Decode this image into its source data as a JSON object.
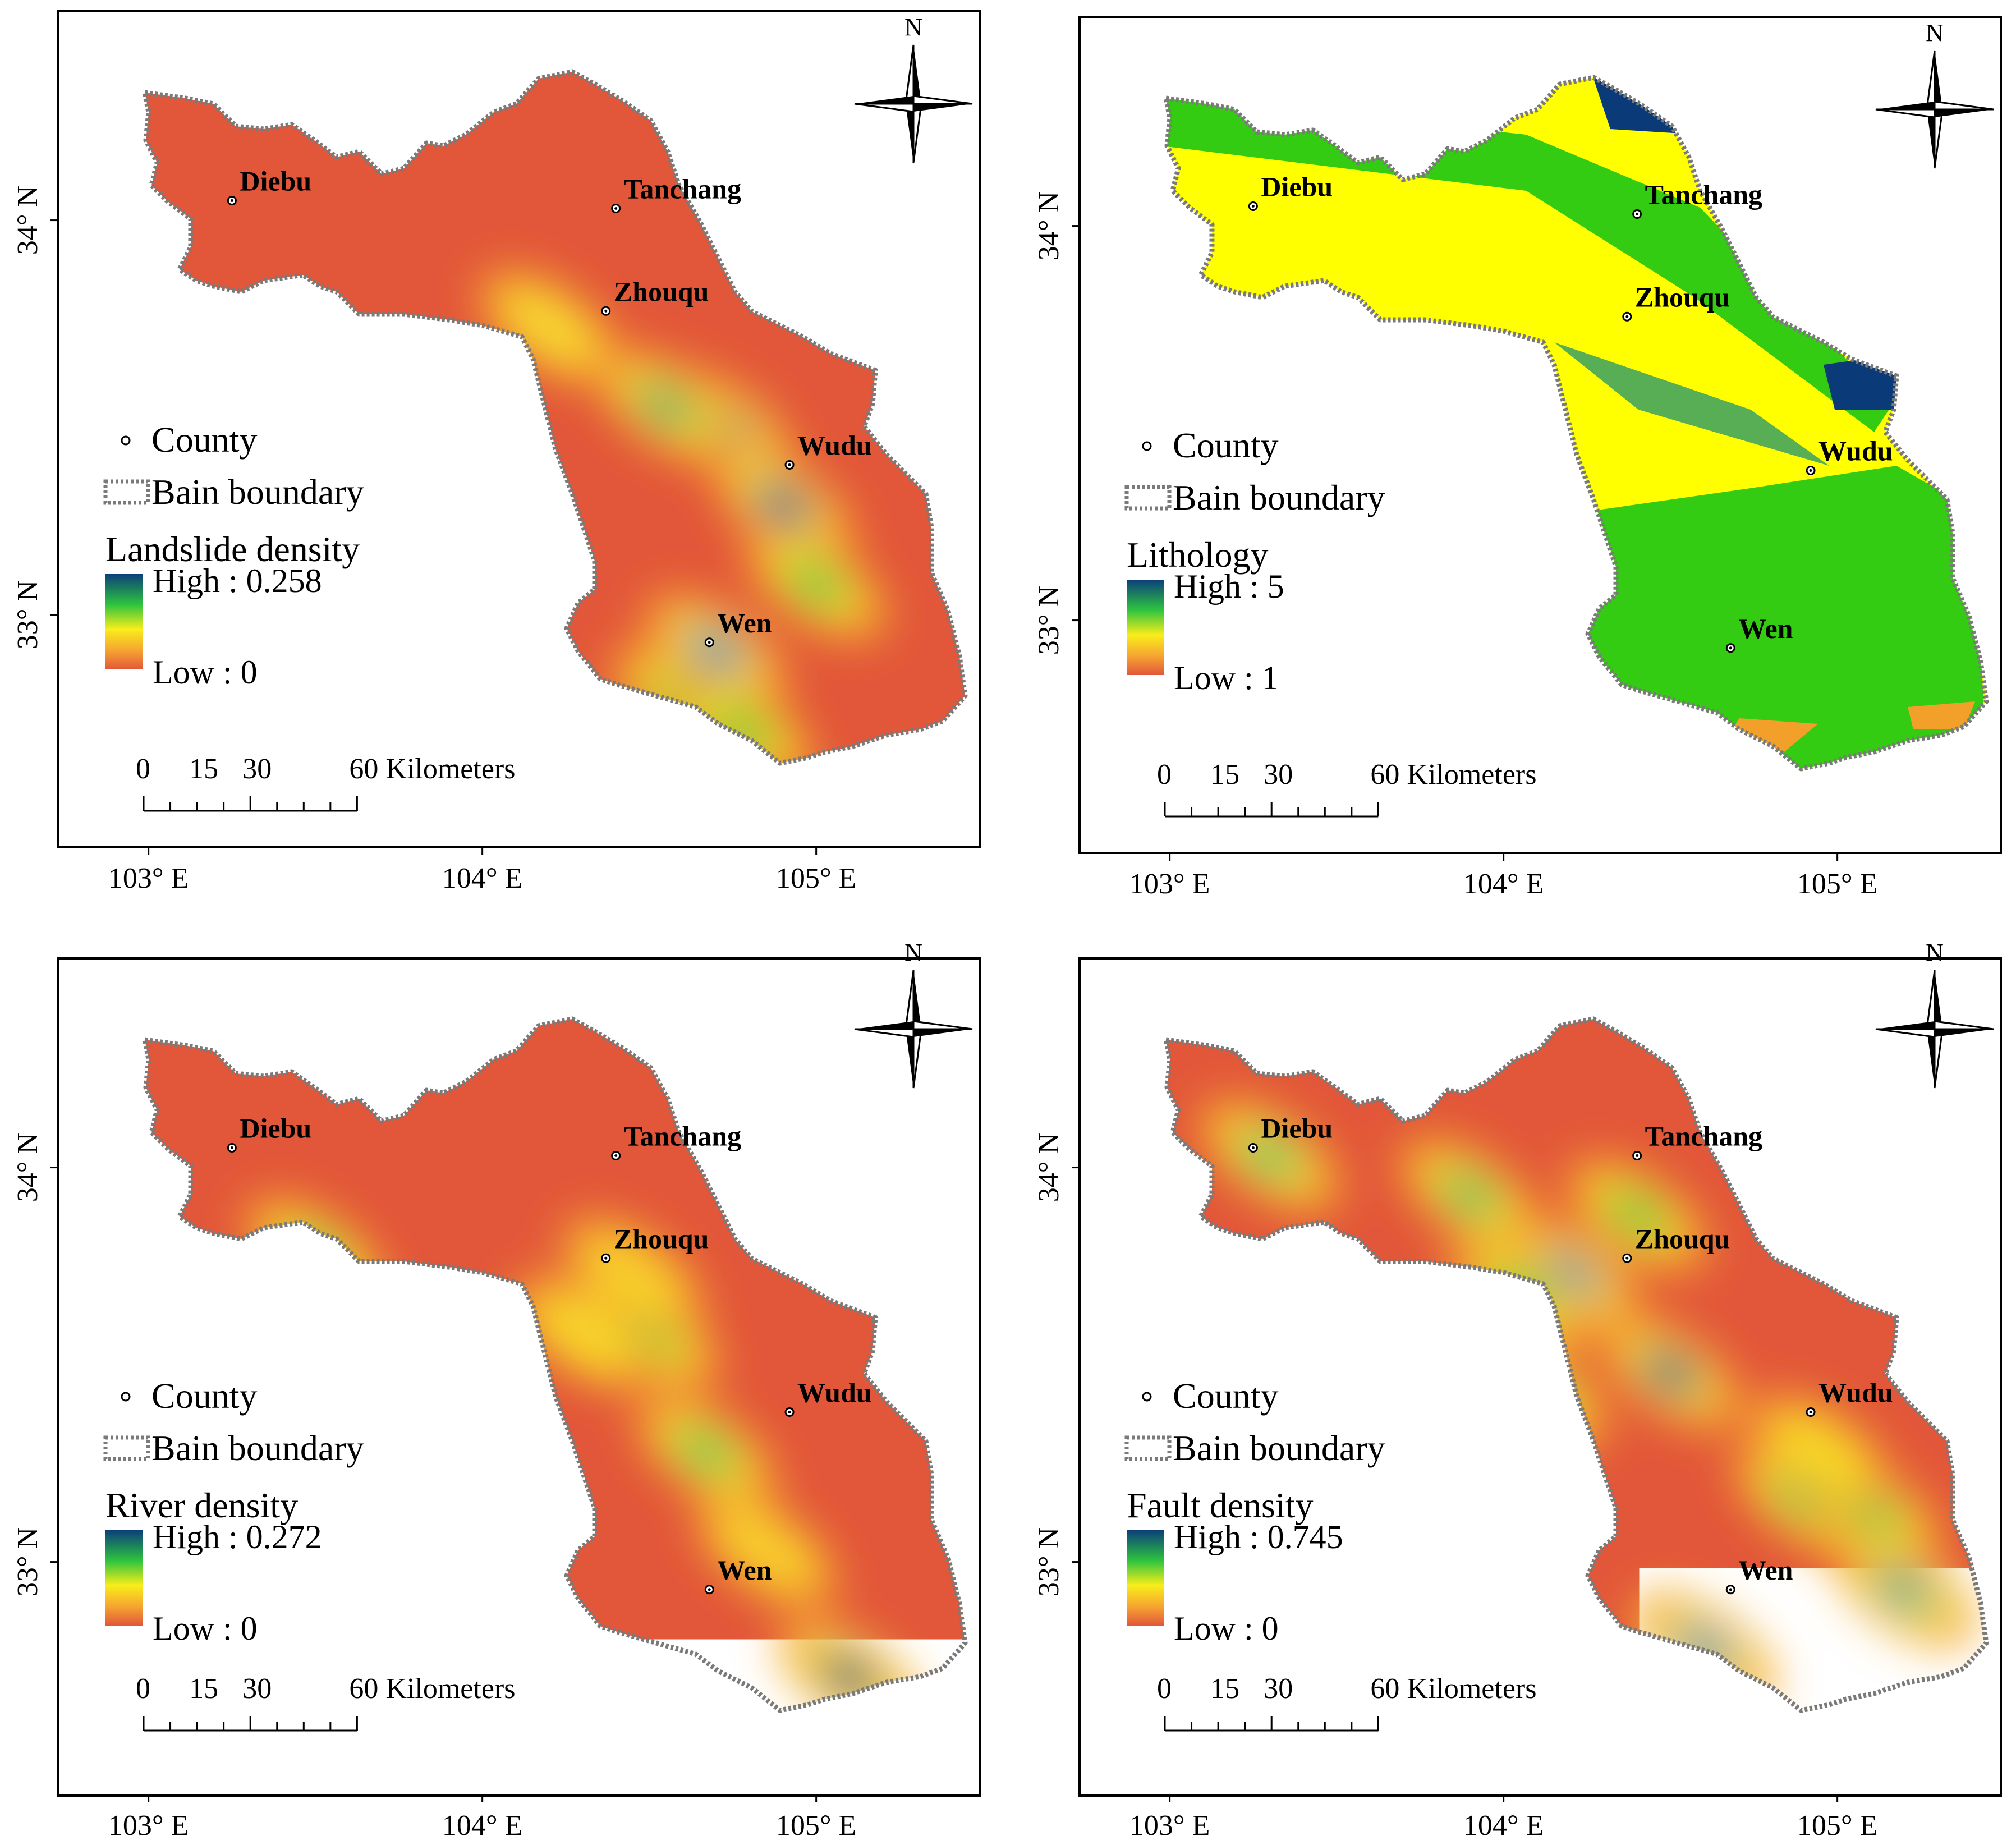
{
  "panels": [
    {
      "layer_title": "Landslide density",
      "high_label": "High : 0.258",
      "low_label": "Low : 0",
      "ramp": "density",
      "blobs": [
        {
          "x": 104.72,
          "y": 33.65,
          "c": "#1f5fa0"
        },
        {
          "x": 104.9,
          "y": 33.45,
          "c": "#1a4f95"
        },
        {
          "x": 104.55,
          "y": 33.7,
          "c": "#2ca36a"
        },
        {
          "x": 104.7,
          "y": 33.08,
          "c": "#2c8fb5"
        },
        {
          "x": 104.6,
          "y": 32.95,
          "c": "#1cb84d"
        },
        {
          "x": 104.2,
          "y": 33.9,
          "c": "#f6d33a"
        },
        {
          "x": 105.0,
          "y": 33.25,
          "c": "#32c34a"
        },
        {
          "x": 104.78,
          "y": 32.88,
          "c": "#35c23c"
        }
      ]
    },
    {
      "layer_title": "Lithology",
      "high_label": "High : 5",
      "low_label": "Low : 1",
      "ramp": "lithology",
      "blobs": []
    },
    {
      "layer_title": "River density",
      "high_label": "High : 0.272",
      "low_label": "Low : 0",
      "ramp": "density",
      "blobs": [
        {
          "x": 105.1,
          "y": 32.88,
          "c": "#0e4c86"
        },
        {
          "x": 104.67,
          "y": 33.45,
          "c": "#2fc254"
        },
        {
          "x": 103.5,
          "y": 33.95,
          "c": "#40c54a"
        },
        {
          "x": 104.5,
          "y": 33.75,
          "c": "#6cc93c"
        },
        {
          "x": 104.3,
          "y": 33.75,
          "c": "#f6d02e"
        },
        {
          "x": 104.85,
          "y": 33.2,
          "c": "#f7c530"
        },
        {
          "x": 104.45,
          "y": 33.9,
          "c": "#f7c530"
        }
      ]
    },
    {
      "layer_title": "Fault density",
      "high_label": "High : 0.745",
      "low_label": "Low : 0",
      "ramp": "density",
      "blobs": [
        {
          "x": 104.5,
          "y": 33.65,
          "c": "#0c4a89"
        },
        {
          "x": 104.2,
          "y": 33.9,
          "c": "#2488b7"
        },
        {
          "x": 104.6,
          "y": 32.95,
          "c": "#2b8fbc"
        },
        {
          "x": 105.2,
          "y": 33.1,
          "c": "#2aa89b"
        },
        {
          "x": 103.3,
          "y": 34.2,
          "c": "#38bf68"
        },
        {
          "x": 104.4,
          "y": 34.05,
          "c": "#3fbe45"
        },
        {
          "x": 103.9,
          "y": 34.1,
          "c": "#36b85e"
        },
        {
          "x": 104.05,
          "y": 33.85,
          "c": "#3ec04a"
        },
        {
          "x": 104.9,
          "y": 33.33,
          "c": "#2cbf56"
        },
        {
          "x": 105.1,
          "y": 33.3,
          "c": "#2cbf56"
        },
        {
          "x": 104.1,
          "y": 33.6,
          "c": "#45c04a"
        },
        {
          "x": 104.95,
          "y": 33.45,
          "c": "#f5d227"
        }
      ]
    }
  ],
  "legend": {
    "county_label": "County",
    "boundary_label": "Bain boundary"
  },
  "counties": [
    {
      "name": "Diebu",
      "lon": 103.25,
      "lat": 34.05
    },
    {
      "name": "Tanchang",
      "lon": 104.4,
      "lat": 34.03
    },
    {
      "name": "Zhouqu",
      "lon": 104.37,
      "lat": 33.77
    },
    {
      "name": "Wudu",
      "lon": 104.92,
      "lat": 33.38
    },
    {
      "name": "Wen",
      "lon": 104.68,
      "lat": 32.93
    }
  ],
  "axes": {
    "x_ticks": [
      103,
      104,
      105
    ],
    "x_tick_labels": [
      "103° E",
      "104° E",
      "105° E"
    ],
    "y_ticks": [
      34,
      33
    ],
    "y_tick_labels": [
      "34° N",
      "33° N"
    ]
  },
  "scale_bar": {
    "labels": [
      "0",
      "15",
      "30",
      "60 Kilometers"
    ],
    "marks_km": [
      0,
      15,
      30,
      60
    ]
  },
  "north_arrow_label": "N",
  "colors": {
    "low": "#e2573a",
    "orange": "#f6a431",
    "yellow": "#f9ee1a",
    "green": "#2ec43f",
    "blue": "#0b3f7a",
    "litho_yellow": "#ffff00",
    "litho_green": "#33cc12",
    "litho_teal": "#2e9a6a",
    "litho_navy": "#0b3a78",
    "litho_orange": "#f2a02a"
  }
}
